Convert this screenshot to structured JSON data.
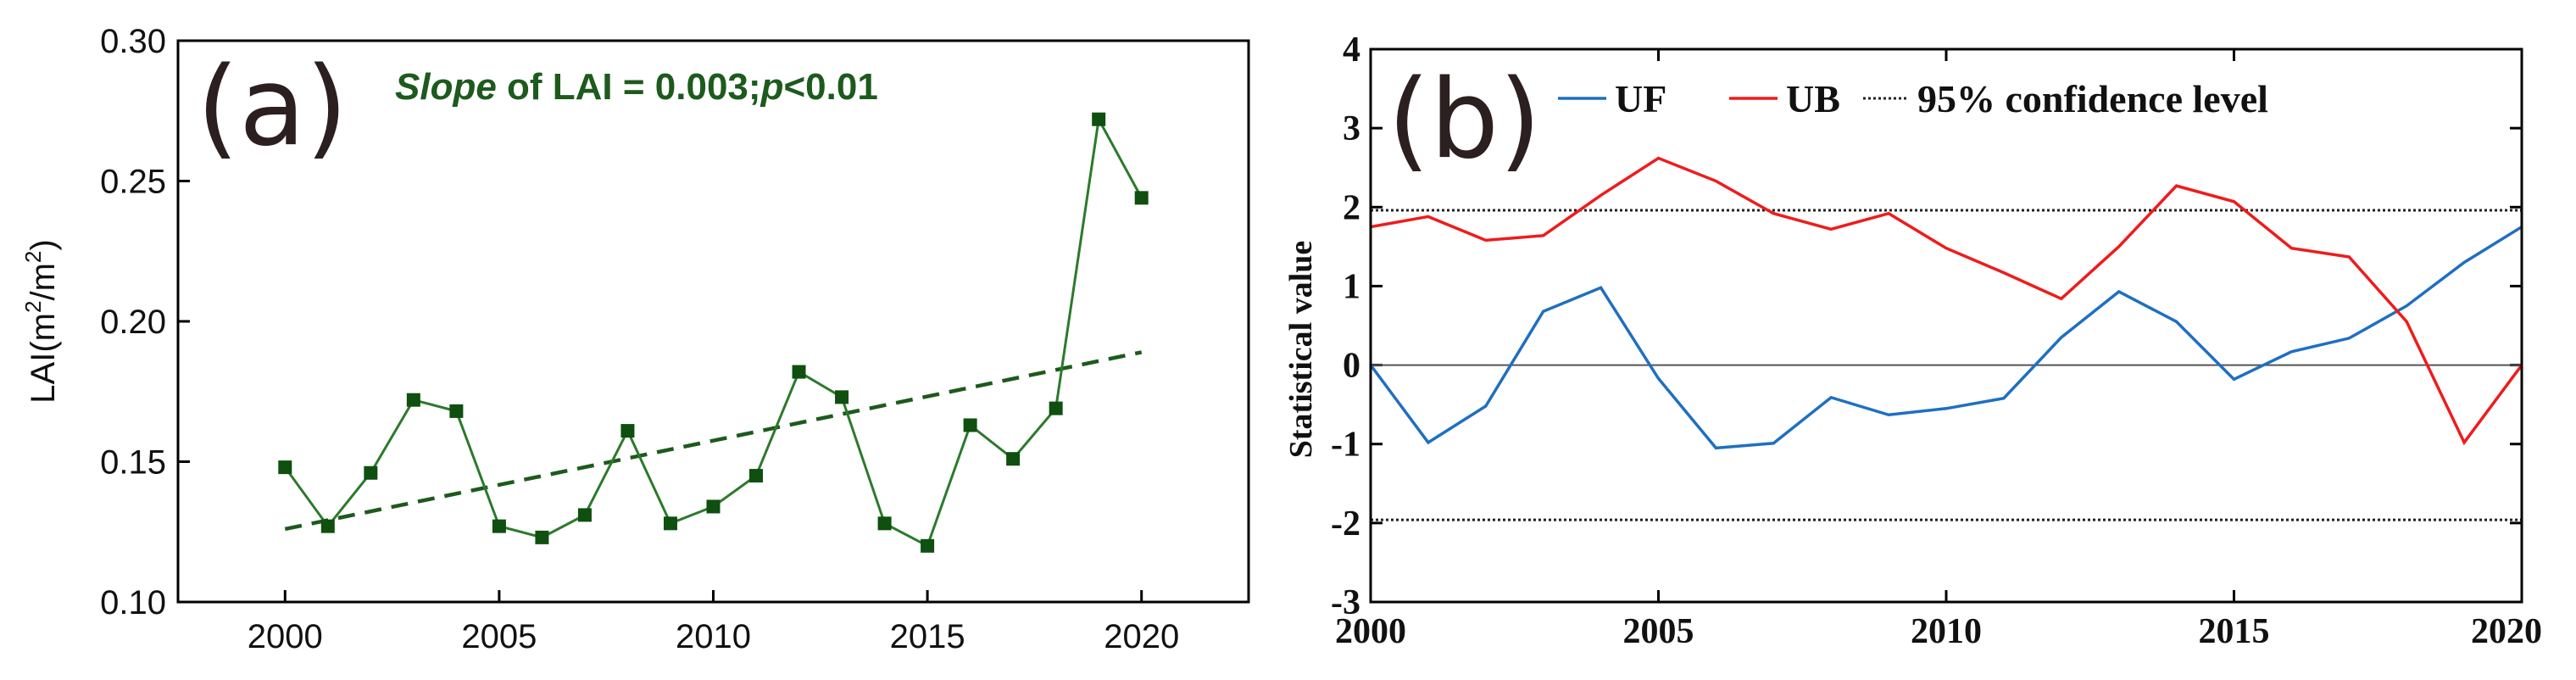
{
  "colors": {
    "lai_series": "#2b7a2b",
    "lai_marker": "#0f4f0f",
    "lai_trend": "#1d5a1d",
    "annotation": "#1d5a1d",
    "uf": "#1f6fc2",
    "ub": "#ee1c1c",
    "confidence": "#222222",
    "axis": "#000000"
  },
  "chart_data": [
    {
      "type": "line",
      "panel_label": "(a)",
      "annotation": {
        "slope_word": "Slope",
        "middle": " of LAI = 0.003;",
        "p_word": "p",
        "tail": "<0.01"
      },
      "ylabel": {
        "prefix": "LAI(m",
        "sup1": "2",
        "mid": "/m",
        "sup2": "2",
        "suffix": ")"
      },
      "xlabel": "",
      "xlim": [
        1997.5,
        2022.5
      ],
      "ylim": [
        0.1,
        0.3
      ],
      "xticks": [
        "2000",
        "2005",
        "2010",
        "2015",
        "2020"
      ],
      "yticks": [
        "0.10",
        "0.15",
        "0.20",
        "0.25",
        "0.30"
      ],
      "x": [
        2000,
        2001,
        2002,
        2003,
        2004,
        2005,
        2006,
        2007,
        2008,
        2009,
        2010,
        2011,
        2012,
        2013,
        2014,
        2015,
        2016,
        2017,
        2018,
        2019,
        2020
      ],
      "series": [
        {
          "name": "LAI",
          "values": [
            0.148,
            0.127,
            0.146,
            0.172,
            0.168,
            0.127,
            0.123,
            0.131,
            0.161,
            0.128,
            0.134,
            0.145,
            0.182,
            0.173,
            0.128,
            0.12,
            0.163,
            0.151,
            0.169,
            0.272,
            0.244
          ]
        }
      ],
      "trend": {
        "name": "Linear trend",
        "x": [
          2000,
          2020
        ],
        "y": [
          0.126,
          0.189
        ]
      }
    },
    {
      "type": "line",
      "panel_label": "(b)",
      "ylabel": "Statistical value",
      "xlabel": "",
      "xlim": [
        2000,
        2020
      ],
      "ylim": [
        -3,
        4
      ],
      "xticks": [
        "2000",
        "2005",
        "2010",
        "2015",
        "2020"
      ],
      "yticks": [
        "-3",
        "-2",
        "-1",
        "0",
        "1",
        "2",
        "3",
        "4"
      ],
      "legend": [
        "UF",
        "UB",
        "95% confidence level"
      ],
      "confidence_level": 1.96,
      "x": [
        2000,
        2001,
        2002,
        2003,
        2004,
        2005,
        2006,
        2007,
        2008,
        2009,
        2010,
        2011,
        2012,
        2013,
        2014,
        2015,
        2016,
        2017,
        2018,
        2019,
        2020
      ],
      "series": [
        {
          "name": "UF",
          "values": [
            0.0,
            -0.98,
            -0.52,
            0.68,
            0.98,
            -0.17,
            -1.05,
            -0.99,
            -0.41,
            -0.63,
            -0.55,
            -0.42,
            0.35,
            0.93,
            0.55,
            -0.18,
            0.17,
            0.34,
            0.75,
            1.3,
            1.75
          ]
        },
        {
          "name": "UB",
          "values": [
            1.75,
            1.88,
            1.58,
            1.64,
            2.15,
            2.62,
            2.33,
            1.92,
            1.72,
            1.92,
            1.48,
            1.17,
            0.84,
            1.5,
            2.27,
            2.07,
            1.48,
            1.37,
            0.55,
            -0.98,
            0.0
          ]
        }
      ]
    }
  ]
}
